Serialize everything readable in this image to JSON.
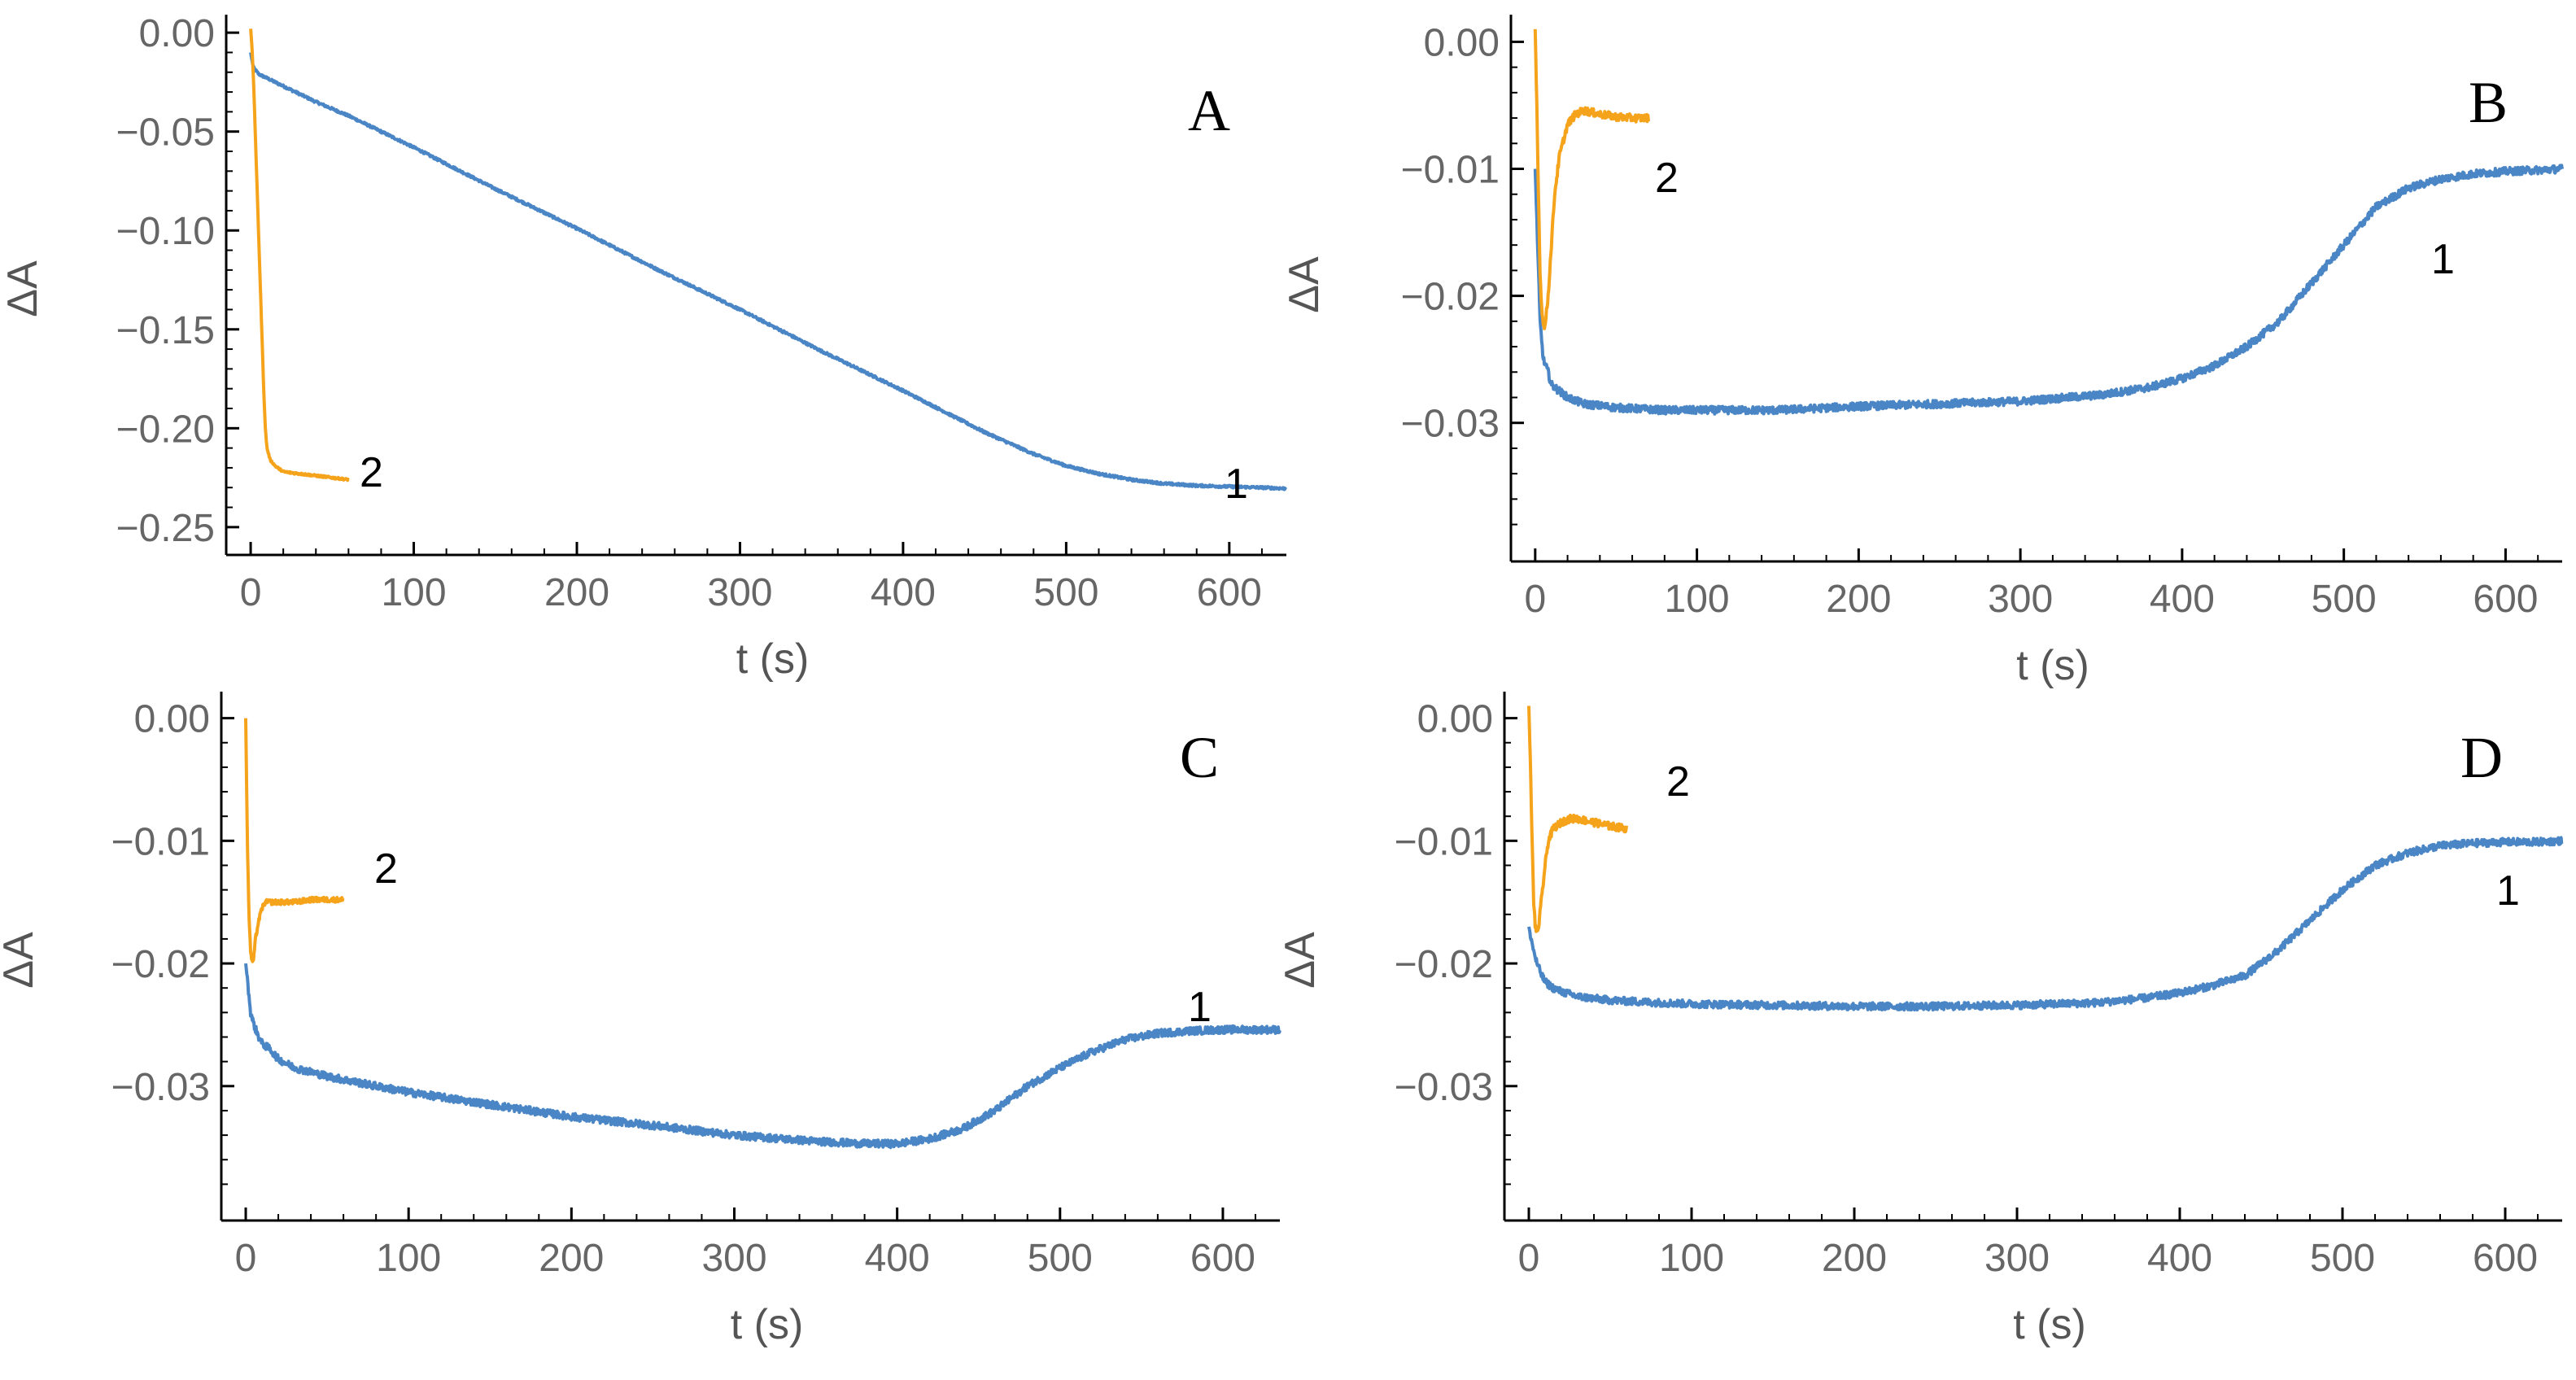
{
  "chart_data": [
    {
      "type": "line",
      "panel": "A",
      "xlabel": "t (s)",
      "ylabel": "ΔA",
      "xlim": [
        -15,
        635
      ],
      "ylim": [
        -0.255,
        0.005
      ],
      "xticks": [
        0,
        100,
        200,
        300,
        400,
        500,
        600
      ],
      "xtick_labels": [
        "0",
        "100",
        "200",
        "300",
        "400",
        "500",
        "600"
      ],
      "yticks": [
        0,
        -0.05,
        -0.1,
        -0.15,
        -0.2,
        -0.25
      ],
      "ytick_labels": [
        "0.00",
        "−0.05",
        "−0.10",
        "−0.15",
        "−0.20",
        "−0.25"
      ],
      "series": [
        {
          "name": "1",
          "label": "1",
          "color": "#4a86c5",
          "noise": 0.0006,
          "x": [
            0,
            1,
            2,
            5,
            10,
            20,
            40,
            60,
            100,
            150,
            200,
            250,
            300,
            350,
            400,
            450,
            480,
            500,
            520,
            540,
            560,
            580,
            600,
            620,
            635
          ],
          "y": [
            -0.01,
            -0.015,
            -0.018,
            -0.021,
            -0.023,
            -0.027,
            -0.035,
            -0.042,
            -0.058,
            -0.079,
            -0.099,
            -0.12,
            -0.14,
            -0.161,
            -0.181,
            -0.202,
            -0.213,
            -0.219,
            -0.223,
            -0.226,
            -0.228,
            -0.229,
            -0.2295,
            -0.23,
            -0.2305
          ]
        },
        {
          "name": "2",
          "label": "2",
          "color": "#f5a31a",
          "noise": 0.0005,
          "x": [
            0,
            1,
            2,
            3,
            4,
            5,
            6,
            7,
            8,
            9,
            10,
            12,
            15,
            20,
            30,
            40,
            50,
            60
          ],
          "y": [
            0.002,
            -0.01,
            -0.03,
            -0.055,
            -0.08,
            -0.105,
            -0.13,
            -0.155,
            -0.18,
            -0.2,
            -0.21,
            -0.216,
            -0.219,
            -0.222,
            -0.223,
            -0.224,
            -0.225,
            -0.226
          ]
        }
      ]
    },
    {
      "type": "line",
      "panel": "B",
      "xlabel": "t (s)",
      "ylabel": "ΔA",
      "xlim": [
        -15,
        635
      ],
      "ylim": [
        -0.0395,
        0.0015
      ],
      "xticks": [
        0,
        100,
        200,
        300,
        400,
        500,
        600
      ],
      "xtick_labels": [
        "0",
        "100",
        "200",
        "300",
        "400",
        "500",
        "600"
      ],
      "yticks": [
        0,
        -0.01,
        -0.02,
        -0.03
      ],
      "ytick_labels": [
        "0.00",
        "−0.01",
        "−0.02",
        "−0.03"
      ],
      "series": [
        {
          "name": "1",
          "label": "1",
          "color": "#4a86c5",
          "noise": 0.0003,
          "x": [
            0,
            3,
            5,
            8,
            10,
            15,
            20,
            30,
            50,
            80,
            100,
            150,
            200,
            250,
            300,
            350,
            380,
            400,
            420,
            440,
            460,
            480,
            500,
            520,
            540,
            560,
            580,
            600,
            620,
            635
          ],
          "y": [
            -0.01,
            -0.022,
            -0.025,
            -0.026,
            -0.027,
            -0.0275,
            -0.028,
            -0.0285,
            -0.0288,
            -0.029,
            -0.029,
            -0.029,
            -0.0287,
            -0.0285,
            -0.0283,
            -0.0278,
            -0.0272,
            -0.0265,
            -0.0255,
            -0.024,
            -0.022,
            -0.019,
            -0.016,
            -0.013,
            -0.0115,
            -0.0108,
            -0.0104,
            -0.0102,
            -0.0101,
            -0.01
          ]
        },
        {
          "name": "2",
          "label": "2",
          "color": "#f5a31a",
          "noise": 0.0003,
          "x": [
            0,
            1,
            2,
            3,
            4,
            5,
            6,
            8,
            10,
            12,
            15,
            20,
            25,
            30,
            40,
            50,
            60,
            70
          ],
          "y": [
            0.001,
            -0.005,
            -0.012,
            -0.018,
            -0.021,
            -0.022,
            -0.0225,
            -0.02,
            -0.016,
            -0.012,
            -0.009,
            -0.0065,
            -0.0057,
            -0.0054,
            -0.0057,
            -0.0059,
            -0.006,
            -0.006
          ]
        }
      ]
    },
    {
      "type": "line",
      "panel": "C",
      "xlabel": "t (s)",
      "ylabel": "ΔA",
      "xlim": [
        -15,
        635
      ],
      "ylim": [
        -0.0395,
        0.0015
      ],
      "xticks": [
        0,
        100,
        200,
        300,
        400,
        500,
        600
      ],
      "xtick_labels": [
        "0",
        "100",
        "200",
        "300",
        "400",
        "500",
        "600"
      ],
      "yticks": [
        0,
        -0.01,
        -0.02,
        -0.03
      ],
      "ytick_labels": [
        "0.00",
        "−0.01",
        "−0.02",
        "−0.03"
      ],
      "series": [
        {
          "name": "1",
          "label": "1",
          "color": "#4a86c5",
          "noise": 0.0003,
          "x": [
            0,
            3,
            5,
            8,
            10,
            15,
            20,
            30,
            50,
            80,
            100,
            150,
            200,
            250,
            300,
            350,
            380,
            400,
            420,
            440,
            460,
            480,
            500,
            520,
            540,
            560,
            580,
            600,
            620,
            635
          ],
          "y": [
            -0.02,
            -0.024,
            -0.025,
            -0.026,
            -0.0265,
            -0.027,
            -0.0278,
            -0.0285,
            -0.0292,
            -0.03,
            -0.0305,
            -0.0315,
            -0.0325,
            -0.0332,
            -0.034,
            -0.0345,
            -0.0347,
            -0.0347,
            -0.0343,
            -0.0335,
            -0.032,
            -0.03,
            -0.0285,
            -0.0272,
            -0.0262,
            -0.0257,
            -0.0255,
            -0.0254,
            -0.0254,
            -0.0254
          ]
        },
        {
          "name": "2",
          "label": "2",
          "color": "#f5a31a",
          "noise": 0.0002,
          "x": [
            0,
            1,
            2,
            3,
            4,
            5,
            6,
            8,
            10,
            12,
            15,
            20,
            30,
            40,
            50,
            60
          ],
          "y": [
            0.0,
            -0.01,
            -0.016,
            -0.019,
            -0.02,
            -0.0195,
            -0.018,
            -0.0165,
            -0.0155,
            -0.015,
            -0.015,
            -0.015,
            -0.015,
            -0.0148,
            -0.0148,
            -0.0148
          ]
        }
      ]
    },
    {
      "type": "line",
      "panel": "D",
      "xlabel": "t (s)",
      "ylabel": "ΔA",
      "xlim": [
        -15,
        635
      ],
      "ylim": [
        -0.0395,
        0.0015
      ],
      "xticks": [
        0,
        100,
        200,
        300,
        400,
        500,
        600
      ],
      "xtick_labels": [
        "0",
        "100",
        "200",
        "300",
        "400",
        "500",
        "600"
      ],
      "yticks": [
        0,
        -0.01,
        -0.02,
        -0.03
      ],
      "ytick_labels": [
        "0.00",
        "−0.01",
        "−0.02",
        "−0.03"
      ],
      "series": [
        {
          "name": "1",
          "label": "1",
          "color": "#4a86c5",
          "noise": 0.0003,
          "x": [
            0,
            3,
            5,
            8,
            10,
            15,
            20,
            30,
            50,
            80,
            100,
            150,
            200,
            250,
            300,
            350,
            380,
            400,
            420,
            440,
            460,
            480,
            500,
            520,
            540,
            560,
            580,
            600,
            620,
            635
          ],
          "y": [
            -0.017,
            -0.019,
            -0.02,
            -0.021,
            -0.0215,
            -0.022,
            -0.0223,
            -0.0227,
            -0.023,
            -0.0232,
            -0.0233,
            -0.0234,
            -0.0235,
            -0.0235,
            -0.0234,
            -0.0232,
            -0.0228,
            -0.0224,
            -0.0218,
            -0.021,
            -0.019,
            -0.0165,
            -0.014,
            -0.012,
            -0.011,
            -0.0104,
            -0.0102,
            -0.0101,
            -0.0101,
            -0.01
          ]
        },
        {
          "name": "2",
          "label": "2",
          "color": "#f5a31a",
          "noise": 0.0003,
          "x": [
            0,
            1,
            2,
            3,
            4,
            5,
            6,
            8,
            10,
            12,
            15,
            20,
            25,
            30,
            40,
            50,
            60
          ],
          "y": [
            0.001,
            -0.004,
            -0.01,
            -0.015,
            -0.017,
            -0.0175,
            -0.017,
            -0.0145,
            -0.012,
            -0.01,
            -0.009,
            -0.0085,
            -0.0082,
            -0.0082,
            -0.0085,
            -0.0088,
            -0.009
          ]
        }
      ]
    }
  ]
}
